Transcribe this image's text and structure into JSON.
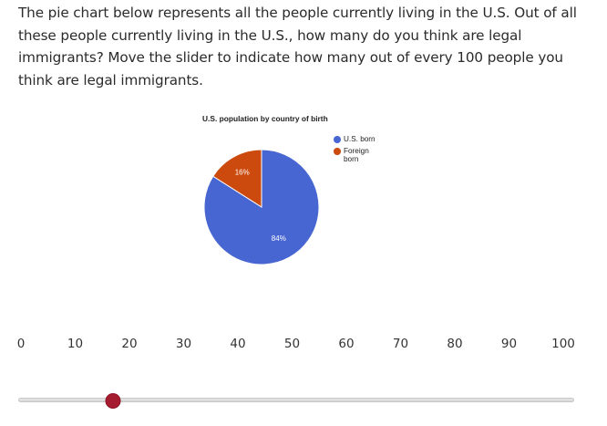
{
  "question": {
    "text": "The pie chart below represents all the people currently living in the U.S. Out of all these people currently living in the U.S., how many do you think are legal immigrants? Move the slider to indicate how many out of every 100 people you think are legal immigrants."
  },
  "chart_data": {
    "type": "pie",
    "title": "U.S. population by country of birth",
    "legend_position": "right",
    "slices": [
      {
        "name": "U.S. born",
        "value": 84,
        "label": "84%",
        "color": "#4766d1"
      },
      {
        "name": "Foreign born",
        "value": 16,
        "label": "16%",
        "color": "#cc4a0e"
      }
    ]
  },
  "slider": {
    "min": 0,
    "max": 100,
    "value": 17,
    "scale_labels": [
      "0",
      "10",
      "20",
      "30",
      "40",
      "50",
      "60",
      "70",
      "80",
      "90",
      "100"
    ],
    "thumb_color": "#a51c30"
  }
}
